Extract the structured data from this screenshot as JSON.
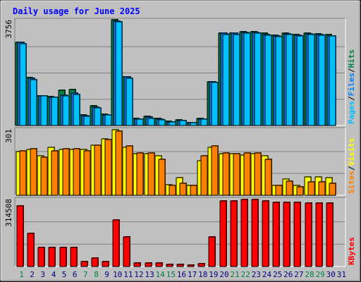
{
  "title": "Daily usage for June 2025",
  "colors": {
    "background": "#c0c0c0",
    "title": "#0000ff",
    "hits": "#008040",
    "files": "#0080ff",
    "pages": "#00c0ff",
    "visits": "#ffff00",
    "sites": "#ff8000",
    "kbytes": "#ff0000",
    "weekend_day": "#008040",
    "weekday": "#000080"
  },
  "chart_data": [
    {
      "type": "bar",
      "panel": "pages-files-hits",
      "max_label": "3756",
      "ylim": [
        0,
        3756
      ],
      "legend": [
        {
          "text": "Pages",
          "color": "#00c0ff"
        },
        {
          "text": "Files",
          "color": "#0080ff"
        },
        {
          "text": "Hits",
          "color": "#008040"
        }
      ],
      "categories": [
        "1",
        "2",
        "3",
        "4",
        "5",
        "6",
        "7",
        "8",
        "9",
        "10",
        "11",
        "12",
        "13",
        "14",
        "15",
        "16",
        "17",
        "18",
        "19",
        "20",
        "21",
        "22",
        "23",
        "24",
        "25",
        "26",
        "27",
        "28",
        "29",
        "30",
        "31"
      ],
      "weekend_days": [
        "1",
        "7",
        "8",
        "14",
        "15",
        "21",
        "22",
        "28",
        "29"
      ],
      "series": [
        {
          "name": "Hits",
          "color": "#008040",
          "values": [
            2980,
            1720,
            1060,
            1040,
            1260,
            1290,
            380,
            700,
            400,
            3770,
            1740,
            240,
            330,
            240,
            150,
            200,
            110,
            260,
            1560,
            3310,
            3310,
            3350,
            3350,
            3290,
            3230,
            3290,
            3250,
            3310,
            3280,
            3240,
            0
          ]
        },
        {
          "name": "Files",
          "color": "#0080ff",
          "values": [
            2980,
            1700,
            1060,
            1020,
            1080,
            1150,
            360,
            650,
            390,
            3740,
            1740,
            230,
            290,
            220,
            130,
            180,
            100,
            230,
            1560,
            3290,
            3290,
            3330,
            3330,
            3250,
            3210,
            3270,
            3220,
            3280,
            3260,
            3210,
            0
          ]
        },
        {
          "name": "Pages",
          "color": "#00c0ff",
          "values": [
            2920,
            1640,
            1050,
            1010,
            1060,
            1120,
            340,
            620,
            370,
            3700,
            1700,
            220,
            260,
            210,
            120,
            170,
            90,
            220,
            1530,
            3260,
            3260,
            3300,
            3300,
            3230,
            3180,
            3240,
            3200,
            3250,
            3230,
            3190,
            0
          ]
        }
      ]
    },
    {
      "type": "bar",
      "panel": "visits-sites",
      "max_label": "301",
      "ylim": [
        0,
        301
      ],
      "legend": [
        {
          "text": "Sites",
          "color": "#ff8000"
        },
        {
          "text": "Visits",
          "color": "#ffff00"
        }
      ],
      "categories": [
        "1",
        "2",
        "3",
        "4",
        "5",
        "6",
        "7",
        "8",
        "9",
        "10",
        "11",
        "12",
        "13",
        "14",
        "15",
        "16",
        "17",
        "18",
        "19",
        "20",
        "21",
        "22",
        "23",
        "24",
        "25",
        "26",
        "27",
        "28",
        "29",
        "30",
        "31"
      ],
      "series": [
        {
          "name": "Visits",
          "color": "#ffff00",
          "values": [
            200,
            210,
            180,
            220,
            210,
            210,
            210,
            230,
            260,
            300,
            220,
            190,
            190,
            180,
            50,
            80,
            45,
            160,
            220,
            190,
            190,
            185,
            190,
            180,
            45,
            75,
            45,
            85,
            85,
            80,
            0
          ]
        },
        {
          "name": "Sites",
          "color": "#ff8000",
          "values": [
            205,
            215,
            175,
            205,
            215,
            215,
            205,
            230,
            255,
            295,
            225,
            195,
            195,
            165,
            45,
            55,
            45,
            180,
            225,
            195,
            190,
            195,
            195,
            165,
            45,
            65,
            40,
            60,
            60,
            55,
            0
          ]
        }
      ]
    },
    {
      "type": "bar",
      "panel": "kbytes",
      "max_label": "314508",
      "ylim": [
        0,
        314508
      ],
      "legend": [
        {
          "text": "KBytes",
          "color": "#ff0000"
        }
      ],
      "categories": [
        "1",
        "2",
        "3",
        "4",
        "5",
        "6",
        "7",
        "8",
        "9",
        "10",
        "11",
        "12",
        "13",
        "14",
        "15",
        "16",
        "17",
        "18",
        "19",
        "20",
        "21",
        "22",
        "23",
        "24",
        "25",
        "26",
        "27",
        "28",
        "29",
        "30",
        "31"
      ],
      "series": [
        {
          "name": "KBytes",
          "color": "#ff0000",
          "values": [
            285000,
            156000,
            90000,
            90000,
            90000,
            90000,
            22000,
            39000,
            22000,
            220000,
            140000,
            17000,
            17000,
            17000,
            9000,
            9000,
            6000,
            14000,
            140000,
            308000,
            308000,
            314000,
            314000,
            308000,
            300000,
            300000,
            300000,
            298000,
            298000,
            298000,
            0
          ]
        }
      ]
    }
  ]
}
